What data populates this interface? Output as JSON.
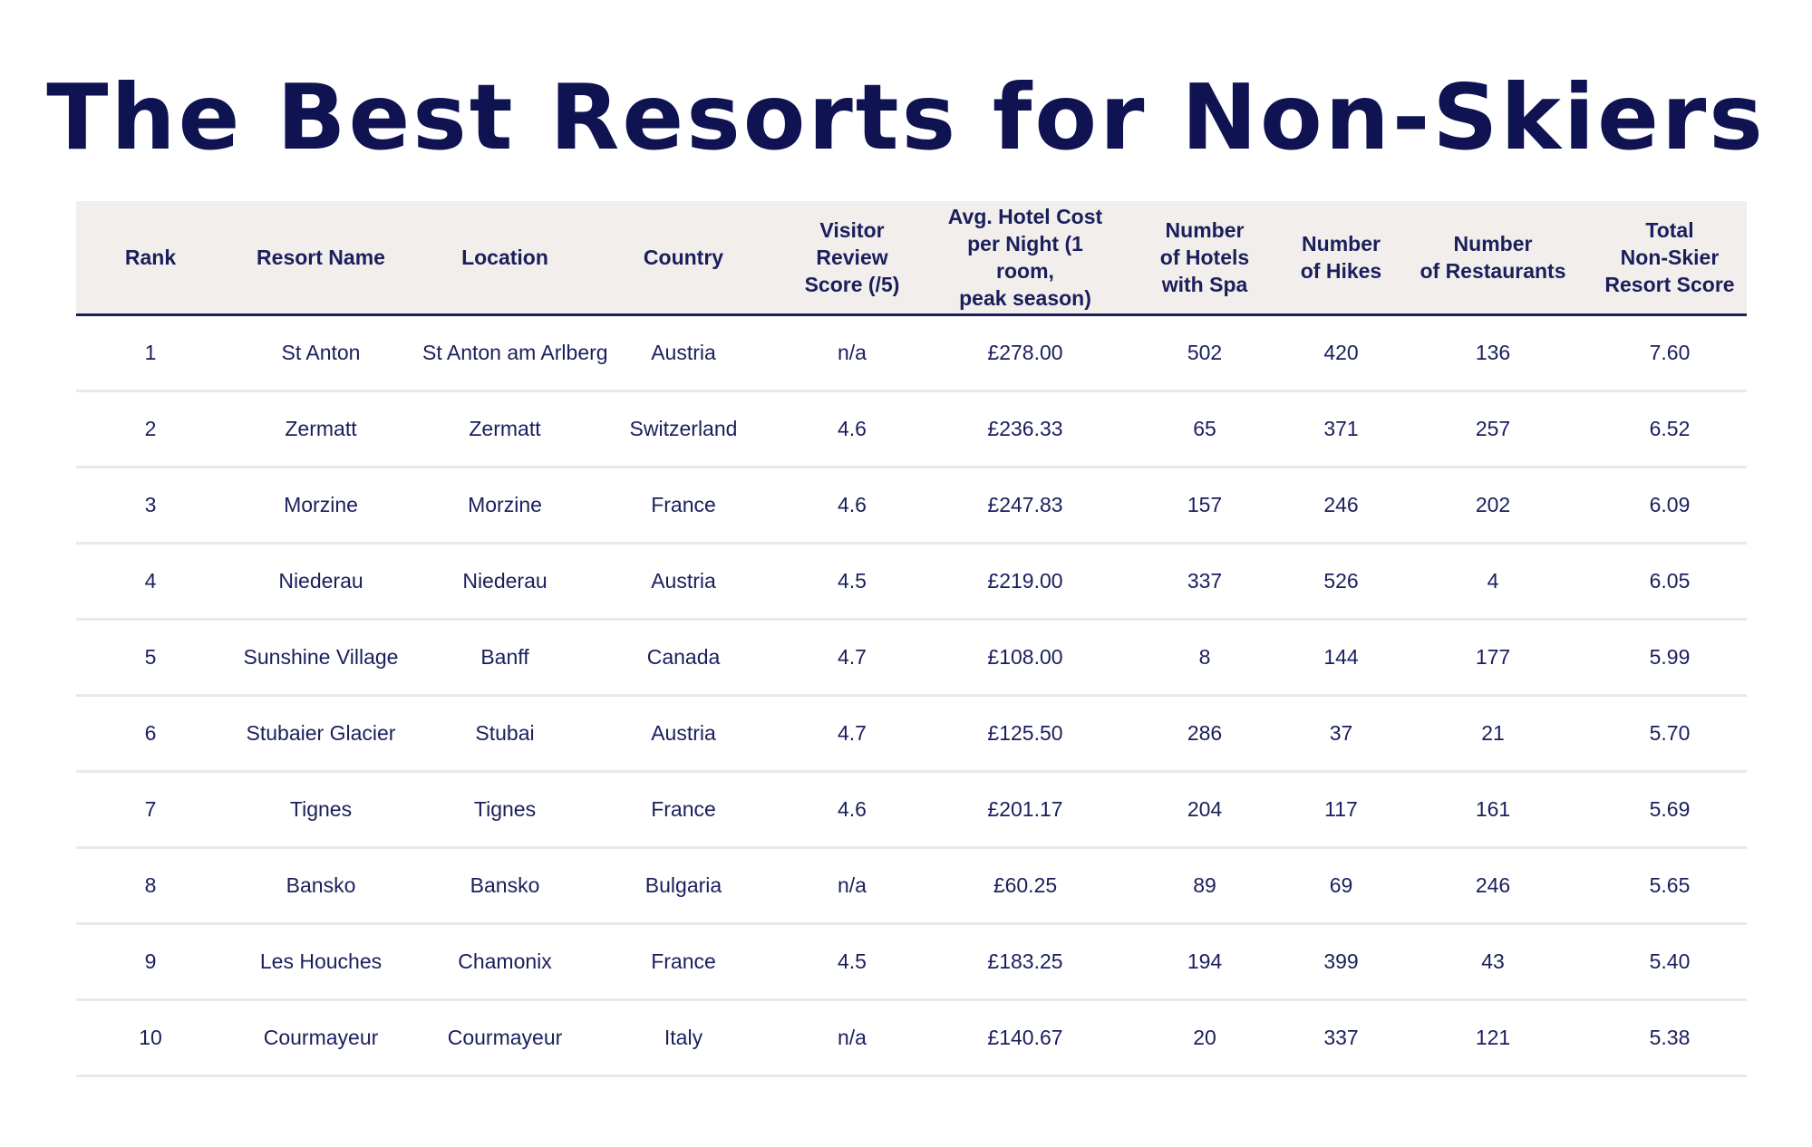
{
  "title": "The Best Resorts for Non-Skiers",
  "table": {
    "headers": [
      "Rank",
      "Resort Name",
      "Location",
      "Country",
      "Visitor\nReview\nScore (/5)",
      "Avg. Hotel Cost\nper Night (1 room,\npeak season)",
      "Number\nof Hotels\nwith Spa",
      "Number\nof Hikes",
      "Number\nof Restaurants",
      "Total\nNon-Skier\nResort Score"
    ],
    "rows": [
      [
        "1",
        "St Anton",
        "St Anton am Arlberg",
        "Austria",
        "n/a",
        "£278.00",
        "502",
        "420",
        "136",
        "7.60"
      ],
      [
        "2",
        "Zermatt",
        "Zermatt",
        "Switzerland",
        "4.6",
        "£236.33",
        "65",
        "371",
        "257",
        "6.52"
      ],
      [
        "3",
        "Morzine",
        "Morzine",
        "France",
        "4.6",
        "£247.83",
        "157",
        "246",
        "202",
        "6.09"
      ],
      [
        "4",
        "Niederau",
        "Niederau",
        "Austria",
        "4.5",
        "£219.00",
        "337",
        "526",
        "4",
        "6.05"
      ],
      [
        "5",
        "Sunshine Village",
        "Banff",
        "Canada",
        "4.7",
        "£108.00",
        "8",
        "144",
        "177",
        "5.99"
      ],
      [
        "6",
        "Stubaier Glacier",
        "Stubai",
        "Austria",
        "4.7",
        "£125.50",
        "286",
        "37",
        "21",
        "5.70"
      ],
      [
        "7",
        "Tignes",
        "Tignes",
        "France",
        "4.6",
        "£201.17",
        "204",
        "117",
        "161",
        "5.69"
      ],
      [
        "8",
        "Bansko",
        "Bansko",
        "Bulgaria",
        "n/a",
        "£60.25",
        "89",
        "69",
        "246",
        "5.65"
      ],
      [
        "9",
        "Les Houches",
        "Chamonix",
        "France",
        "4.5",
        "£183.25",
        "194",
        "399",
        "43",
        "5.40"
      ],
      [
        "10",
        "Courmayeur",
        "Courmayeur",
        "Italy",
        "n/a",
        "£140.67",
        "20",
        "337",
        "121",
        "5.38"
      ]
    ]
  },
  "colors": {
    "title": "#0f1352",
    "text": "#1a1f5c",
    "header_background": "#f1eeec",
    "header_rule": "#1a1f5c",
    "row_rule": "#ebe8e6",
    "page_background": "#ffffff"
  }
}
